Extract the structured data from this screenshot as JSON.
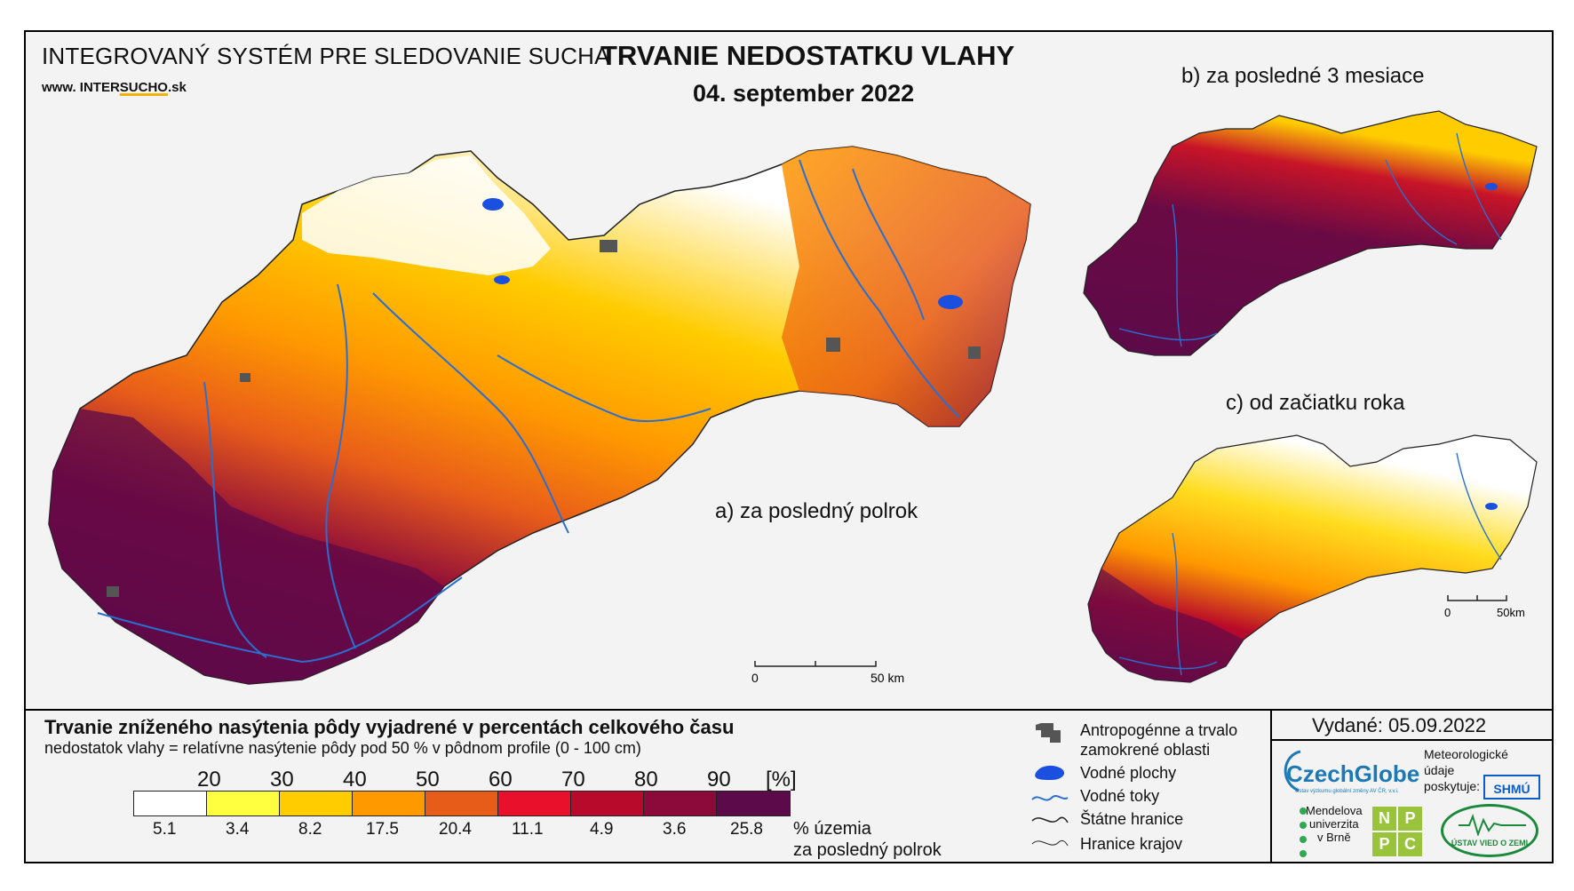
{
  "header": {
    "org_name": "INTEGROVANÝ SYSTÉM PRE SLEDOVANIE SUCHA",
    "website_prefix": "www. ",
    "website_brand_a": "INTER",
    "website_brand_b": "SUCHO",
    "website_suffix": ".sk",
    "title": "TRVANIE NEDOSTATKU VLAHY",
    "date": "04. september 2022"
  },
  "maps": {
    "main_label": "a) za posledný polrok",
    "inset_b_label": "b) za posledné 3 mesiace",
    "inset_c_label": "c) od začiatku roka",
    "main_scale": {
      "start": "0",
      "end": "50 km"
    },
    "inset_scale": {
      "start": "0",
      "end": "50km"
    }
  },
  "legend": {
    "title": "Trvanie zníženého nasýtenia pôdy vyjadrené v percentách celkového času",
    "subtitle": "nedostatok vlahy = relatívne nasýtenie pôdy pod 50 % v pôdnom profile (0 - 100 cm)",
    "ticks": [
      "20",
      "30",
      "40",
      "50",
      "60",
      "70",
      "80",
      "90",
      "[%]"
    ],
    "colors": [
      "#ffffff",
      "#ffff40",
      "#ffcc00",
      "#ff9900",
      "#e85c1a",
      "#e8102a",
      "#b80a2a",
      "#8c0a3a",
      "#5c0a4a"
    ],
    "area_percentages": [
      "5.1",
      "3.4",
      "8.2",
      "17.5",
      "20.4",
      "11.1",
      "4.9",
      "3.6",
      "25.8"
    ],
    "area_label_1": "% územia",
    "area_label_2": "za posledný polrok"
  },
  "symbols": {
    "anthropogenic_1": "Antropogénne a trvalo",
    "anthropogenic_2": "zamokrené oblasti",
    "water_bodies": "Vodné plochy",
    "water_streams": "Vodné toky",
    "state_border": "Štátne hranice",
    "region_border": "Hranice krajov"
  },
  "issued": "Vydané: 05.09.2022",
  "partners": {
    "czechglobe": "CzechGlobe",
    "czechglobe_sub": "Ústav výzkumu globální změny AV ČR, v.v.i.",
    "met_data_1": "Meteorologické",
    "met_data_2": "údaje",
    "met_data_3": "poskytuje:",
    "shmu": "SHMÚ",
    "mendel_1": "Mendelova",
    "mendel_2": "univerzita",
    "mendel_3": "v Brně",
    "npcp": [
      "N",
      "P",
      "P",
      "C"
    ],
    "uvz": "ÚSTAV VIED O ZEMI"
  }
}
